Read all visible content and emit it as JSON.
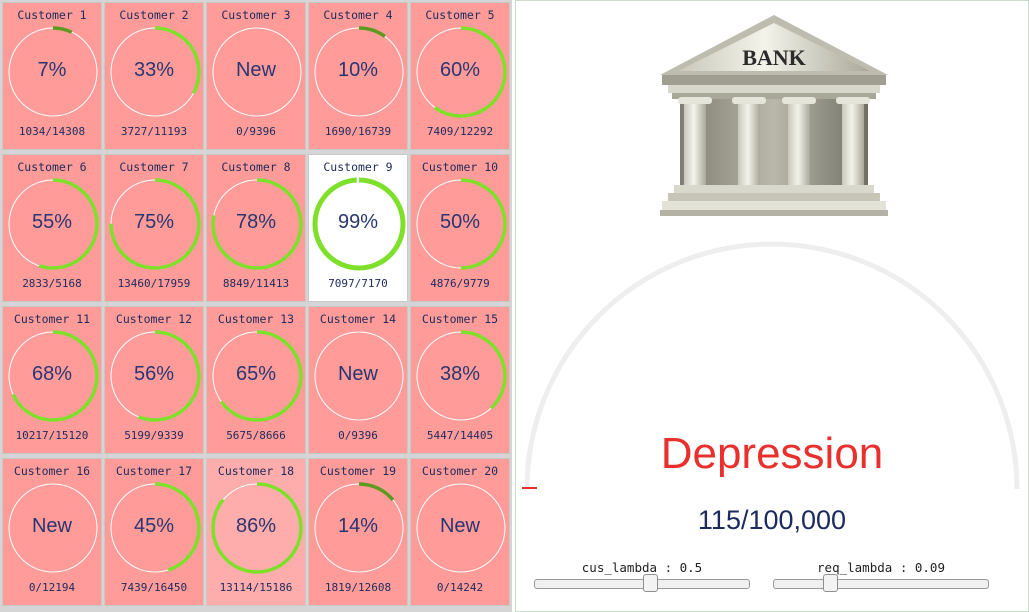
{
  "customers": [
    {
      "name": "Customer 1",
      "label": "7%",
      "progress": 0.07,
      "count": "1034/14308",
      "state": "pending"
    },
    {
      "name": "Customer 2",
      "label": "33%",
      "progress": 0.33,
      "count": "3727/11193",
      "state": "pending"
    },
    {
      "name": "Customer 3",
      "label": "New",
      "progress": 0,
      "count": "0/9396",
      "state": "new"
    },
    {
      "name": "Customer 4",
      "label": "10%",
      "progress": 0.1,
      "count": "1690/16739",
      "state": "pending"
    },
    {
      "name": "Customer 5",
      "label": "60%",
      "progress": 0.6,
      "count": "7409/12292",
      "state": "pending"
    },
    {
      "name": "Customer 6",
      "label": "55%",
      "progress": 0.55,
      "count": "2833/5168",
      "state": "pending"
    },
    {
      "name": "Customer 7",
      "label": "75%",
      "progress": 0.75,
      "count": "13460/17959",
      "state": "pending"
    },
    {
      "name": "Customer 8",
      "label": "78%",
      "progress": 0.78,
      "count": "8849/11413",
      "state": "pending"
    },
    {
      "name": "Customer 9",
      "label": "99%",
      "progress": 0.99,
      "count": "7097/7170",
      "state": "done"
    },
    {
      "name": "Customer 10",
      "label": "50%",
      "progress": 0.5,
      "count": "4876/9779",
      "state": "pending"
    },
    {
      "name": "Customer 11",
      "label": "68%",
      "progress": 0.68,
      "count": "10217/15120",
      "state": "pending"
    },
    {
      "name": "Customer 12",
      "label": "56%",
      "progress": 0.56,
      "count": "5199/9339",
      "state": "pending"
    },
    {
      "name": "Customer 13",
      "label": "65%",
      "progress": 0.65,
      "count": "5675/8666",
      "state": "pending"
    },
    {
      "name": "Customer 14",
      "label": "New",
      "progress": 0,
      "count": "0/9396",
      "state": "new"
    },
    {
      "name": "Customer 15",
      "label": "38%",
      "progress": 0.38,
      "count": "5447/14405",
      "state": "pending"
    },
    {
      "name": "Customer 16",
      "label": "New",
      "progress": 0,
      "count": "0/12194",
      "state": "new"
    },
    {
      "name": "Customer 17",
      "label": "45%",
      "progress": 0.45,
      "count": "7439/16450",
      "state": "pending"
    },
    {
      "name": "Customer 18",
      "label": "86%",
      "progress": 0.86,
      "count": "13114/15186",
      "state": "highlight"
    },
    {
      "name": "Customer 19",
      "label": "14%",
      "progress": 0.14,
      "count": "1819/12608",
      "state": "pending"
    },
    {
      "name": "Customer 20",
      "label": "New",
      "progress": 0,
      "count": "0/14242",
      "state": "new"
    }
  ],
  "bank": {
    "sign": "BANK"
  },
  "gauge": {
    "status": "Depression",
    "score": "115/100,000",
    "status_color": "#e8302c"
  },
  "sliders": [
    {
      "label": "cus_lambda : 0.5",
      "fraction": 0.55
    },
    {
      "label": "req_lambda : 0.09",
      "fraction": 0.25
    }
  ],
  "colors": {
    "cell_bg": "#ff9c9a",
    "ring_progress": "#7ee02a",
    "ring_dark": "#5c9a20"
  }
}
